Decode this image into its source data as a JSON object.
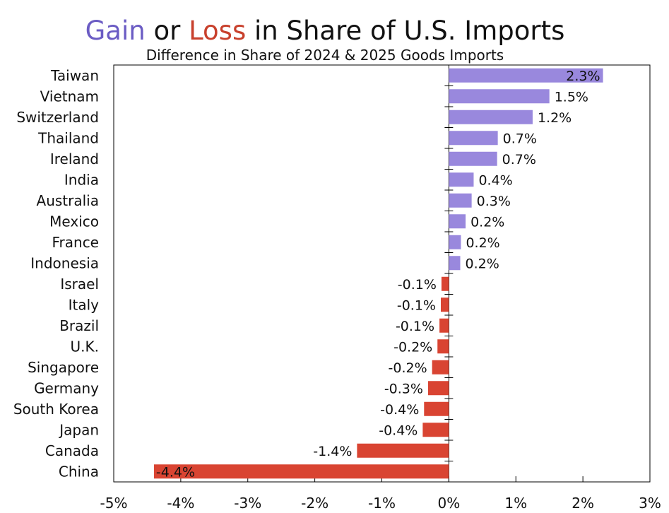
{
  "chart_data": {
    "type": "bar",
    "orientation": "horizontal",
    "title_parts": [
      "Gain",
      " or ",
      "Loss",
      " in Share of U.S. Imports"
    ],
    "subtitle": "Difference in Share of 2024 & 2025 Goods Imports",
    "xlabel": "",
    "ylabel": "",
    "xlim": [
      -5,
      3
    ],
    "x_ticks": [
      -5,
      -4,
      -3,
      -2,
      -1,
      0,
      1,
      2,
      3
    ],
    "x_tick_labels": [
      "-5%",
      "-4%",
      "-3%",
      "-2%",
      "-1%",
      "0%",
      "1%",
      "2%",
      "3%"
    ],
    "grid": false,
    "categories": [
      "Taiwan",
      "Vietnam",
      "Switzerland",
      "Thailand",
      "Ireland",
      "India",
      "Australia",
      "Mexico",
      "France",
      "Indonesia",
      "Israel",
      "Italy",
      "Brazil",
      "U.K.",
      "Singapore",
      "Germany",
      "South Korea",
      "Japan",
      "Canada",
      "China"
    ],
    "values": [
      2.3,
      1.5,
      1.25,
      0.73,
      0.72,
      0.37,
      0.34,
      0.25,
      0.18,
      0.17,
      -0.11,
      -0.12,
      -0.14,
      -0.17,
      -0.25,
      -0.31,
      -0.37,
      -0.39,
      -1.37,
      -4.4
    ],
    "value_labels": [
      "2.3%",
      "1.5%",
      "1.2%",
      "0.7%",
      "0.7%",
      "0.4%",
      "0.3%",
      "0.2%",
      "0.2%",
      "0.2%",
      "-0.1%",
      "-0.1%",
      "-0.1%",
      "-0.2%",
      "-0.2%",
      "-0.3%",
      "-0.4%",
      "-0.4%",
      "-1.4%",
      "-4.4%"
    ],
    "colors": {
      "gain": "#9988dd",
      "loss": "#d94432",
      "title_gain": "#6b5cc4",
      "title_loss": "#c8402c",
      "axis": "#000000"
    }
  }
}
